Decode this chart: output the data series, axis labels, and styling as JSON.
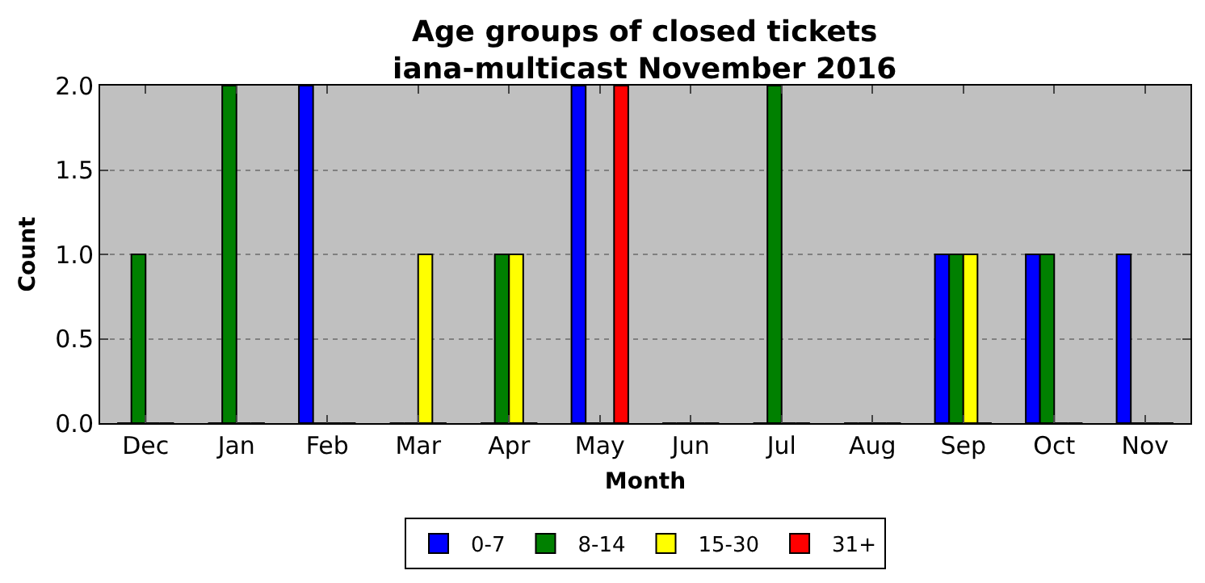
{
  "chart_data": {
    "type": "bar",
    "title": "Age groups of closed tickets\niana-multicast November 2016",
    "xlabel": "Month",
    "ylabel": "Count",
    "categories": [
      "Dec",
      "Jan",
      "Feb",
      "Mar",
      "Apr",
      "May",
      "Jun",
      "Jul",
      "Aug",
      "Sep",
      "Oct",
      "Nov"
    ],
    "series": [
      {
        "name": "0-7",
        "color": "#0000ff",
        "values": [
          0,
          0,
          2,
          0,
          0,
          2,
          0,
          0,
          0,
          1,
          1,
          1
        ]
      },
      {
        "name": "8-14",
        "color": "#008000",
        "values": [
          1,
          2,
          0,
          0,
          1,
          0,
          0,
          2,
          0,
          1,
          1,
          0
        ]
      },
      {
        "name": "15-30",
        "color": "#ffff00",
        "values": [
          0,
          0,
          0,
          1,
          1,
          0,
          0,
          0,
          0,
          1,
          0,
          0
        ]
      },
      {
        "name": "31+",
        "color": "#ff0000",
        "values": [
          0,
          0,
          0,
          0,
          0,
          2,
          0,
          0,
          0,
          0,
          0,
          0
        ]
      }
    ],
    "ylim": [
      0,
      2
    ],
    "yticks": [
      {
        "value": 0,
        "label": "0.0"
      },
      {
        "value": 0.5,
        "label": "0.5"
      },
      {
        "value": 1,
        "label": "1.0"
      },
      {
        "value": 1.5,
        "label": "1.5"
      },
      {
        "value": 2,
        "label": "2.0"
      }
    ],
    "grid": "y",
    "legend": "bottom"
  }
}
